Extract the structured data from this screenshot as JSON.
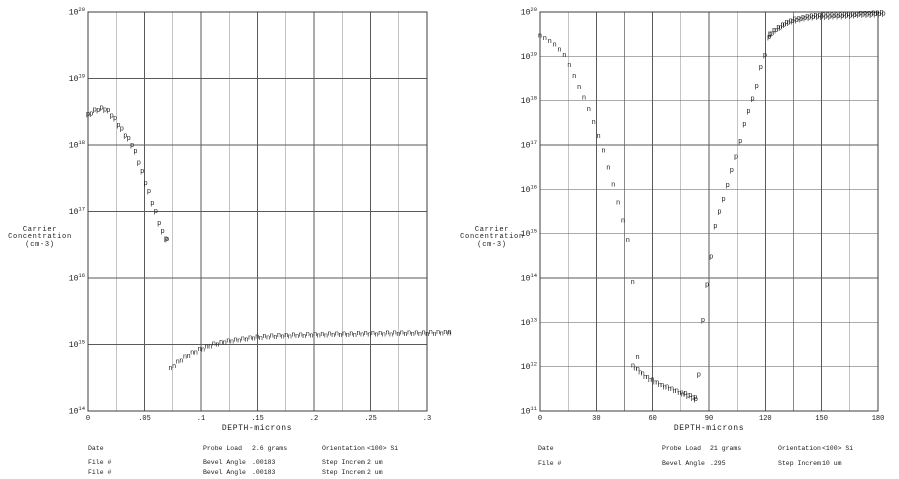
{
  "colors": {
    "ink": "#1a1a1a",
    "grid_minor": "#8a8a8a",
    "grid_major": "#5a5a5a",
    "border": "#3c3c3c",
    "background": "#ffffff"
  },
  "chart_data": [
    {
      "type": "scatter",
      "title": "",
      "xlabel": "DEPTH-microns",
      "ylabel": "Carrier Concentration (cm-3)",
      "ylabel_lines": [
        "Carrier",
        "Concentration",
        "(cm-3)"
      ],
      "x_range": [
        0,
        0.3
      ],
      "x_minor_step": 0.025,
      "x_ticks": [
        [
          0,
          "0"
        ],
        [
          0.05,
          ".05"
        ],
        [
          0.1,
          ".1"
        ],
        [
          0.15,
          ".15"
        ],
        [
          0.2,
          ".2"
        ],
        [
          0.25,
          ".25"
        ],
        [
          0.3,
          ".3"
        ]
      ],
      "y_log_range": [
        14,
        20
      ],
      "grid": true,
      "legend": "none",
      "series": [
        {
          "name": "p-layer",
          "marker": "p",
          "step": 0.003,
          "points": [
            [
              0.0,
              2.9e+18
            ],
            [
              0.006,
              3.35e+18
            ],
            [
              0.012,
              3.6e+18
            ],
            [
              0.015,
              3.55e+18
            ],
            [
              0.018,
              3.3e+18
            ],
            [
              0.021,
              2.9e+18
            ],
            [
              0.024,
              2.5e+18
            ],
            [
              0.027,
              2.1e+18
            ],
            [
              0.03,
              1.75e+18
            ],
            [
              0.033,
              1.45e+18
            ],
            [
              0.036,
              1.25e+18
            ],
            [
              0.039,
              1.05e+18
            ],
            [
              0.042,
              8e+17
            ],
            [
              0.045,
              5.7e+17
            ],
            [
              0.048,
              4e+17
            ],
            [
              0.051,
              2.8e+17
            ],
            [
              0.054,
              2e+17
            ],
            [
              0.057,
              1.4e+17
            ],
            [
              0.06,
              1e+17
            ],
            [
              0.063,
              7e+16
            ],
            [
              0.066,
              5e+16
            ],
            [
              0.07,
              3.8e+16
            ]
          ]
        },
        {
          "name": "n-substrate",
          "marker": "n",
          "step": 0.0032,
          "points": [
            [
              0.073,
              440000000000000.0
            ],
            [
              0.08,
              560000000000000.0
            ],
            [
              0.09,
              720000000000000.0
            ],
            [
              0.1,
              860000000000000.0
            ],
            [
              0.11,
              1000000000000000.0
            ],
            [
              0.125,
              1150000000000000.0
            ],
            [
              0.15,
              1300000000000000.0
            ],
            [
              0.175,
              1380000000000000.0
            ],
            [
              0.2,
              1420000000000000.0
            ],
            [
              0.25,
              1470000000000000.0
            ],
            [
              0.285,
              1500000000000000.0
            ],
            [
              0.32,
              1520000000000000.0
            ]
          ]
        }
      ]
    },
    {
      "type": "scatter",
      "title": "",
      "xlabel": "DEPTH-microns",
      "ylabel": "Carrier Concentration (cm-3)",
      "ylabel_lines": [
        "Carrier",
        "Concentration",
        "(cm-3)"
      ],
      "x_range": [
        0,
        180
      ],
      "x_minor_step": 15,
      "x_ticks": [
        [
          0,
          "0"
        ],
        [
          30,
          "30"
        ],
        [
          60,
          "60"
        ],
        [
          90,
          "90"
        ],
        [
          120,
          "120"
        ],
        [
          150,
          "150"
        ],
        [
          180,
          "180"
        ]
      ],
      "y_log_range": [
        11,
        20
      ],
      "grid": true,
      "legend": "none",
      "series": [
        {
          "name": "n-layer",
          "marker": "n",
          "step": 2.6,
          "points": [
            [
              0,
              3e+19
            ],
            [
              3,
              2.6e+19
            ],
            [
              6,
              2.15e+19
            ],
            [
              9,
              1.7e+19
            ],
            [
              12,
              1.25e+19
            ],
            [
              14,
              9.5e+18
            ],
            [
              17,
              4.7e+18
            ],
            [
              21,
              2e+18
            ],
            [
              25,
              8.5e+17
            ],
            [
              29,
              3e+17
            ],
            [
              33,
              1e+17
            ],
            [
              37,
              2.6e+16
            ],
            [
              41,
              6500000000000000.0
            ],
            [
              45,
              1500000000000000.0
            ],
            [
              48,
              450000000000000.0
            ],
            [
              50,
              40000000000000.0
            ],
            [
              52,
              1700000000000.0
            ]
          ]
        },
        {
          "name": "n-tail",
          "marker": "n",
          "step": 1.3,
          "points": [
            [
              49.5,
              1050000000000.0
            ],
            [
              52,
              880000000000.0
            ],
            [
              56,
              620000000000.0
            ],
            [
              60,
              500000000000.0
            ],
            [
              65,
              380000000000.0
            ],
            [
              70,
              320000000000.0
            ],
            [
              76,
              250000000000.0
            ]
          ]
        },
        {
          "name": "p-tail",
          "marker": "p",
          "step": 1.3,
          "points": [
            [
              77.5,
              250000000000.0
            ],
            [
              83,
              200000000000.0
            ]
          ]
        },
        {
          "name": "p-rise",
          "marker": "p",
          "step": 2.2,
          "points": [
            [
              84.6,
              680000000000.0
            ],
            [
              86.2,
              6600000000000.0
            ],
            [
              88.4,
              50000000000000.0
            ],
            [
              90.5,
              180000000000000.0
            ],
            [
              91.8,
              500000000000000.0
            ],
            [
              93.2,
              1400000000000000.0
            ],
            [
              95.8,
              3500000000000000.0
            ],
            [
              98.9,
              8500000000000000.0
            ],
            [
              100.8,
              1.7e+16
            ],
            [
              103.1,
              3.9e+16
            ],
            [
              105.3,
              7.1e+16
            ],
            [
              107.0,
              1.5e+17
            ],
            [
              108.8,
              3e+17
            ],
            [
              111.1,
              6.2e+17
            ],
            [
              113.4,
              1.2e+18
            ],
            [
              115.4,
              2.2e+18
            ],
            [
              117.1,
              5.1e+18
            ],
            [
              119.8,
              1.1e+19
            ],
            [
              121.0,
              2.1e+19
            ],
            [
              122.5,
              3.2e+19
            ]
          ]
        },
        {
          "name": "p-plateau",
          "marker": "p",
          "step": 1.1,
          "points": [
            [
              122.5,
              3.2e+19
            ],
            [
              126,
              4.2e+19
            ],
            [
              130,
              5.5e+19
            ],
            [
              135,
              6.8e+19
            ],
            [
              140,
              7.6e+19
            ],
            [
              145,
              8.2e+19
            ],
            [
              150,
              8.5e+19
            ],
            [
              155,
              8.5e+19
            ],
            [
              160,
              8.7e+19
            ],
            [
              165,
              8.8e+19
            ],
            [
              170,
              9.3e+19
            ],
            [
              175,
              9.3e+19
            ],
            [
              179,
              9.6e+19
            ],
            [
              183,
              9.8e+19
            ]
          ]
        }
      ]
    }
  ],
  "tables": [
    {
      "rows": [
        [
          "Date",
          "Probe Load",
          "2.6 grams",
          "Orientation",
          "<100> Si"
        ],
        [
          "File #",
          "Bevel Angle",
          ".00183",
          "Step Increm",
          "2 um"
        ],
        [
          "File #",
          "Bevel Angle",
          ".00183",
          "Step Increm",
          "2 um"
        ]
      ]
    },
    {
      "rows": [
        [
          "Date",
          "Probe Load",
          "21 grams",
          "Orientation",
          "<100> Si"
        ],
        [
          "File #",
          "Bevel Angle",
          ".295",
          "Step Increm",
          "10 um"
        ]
      ]
    }
  ]
}
